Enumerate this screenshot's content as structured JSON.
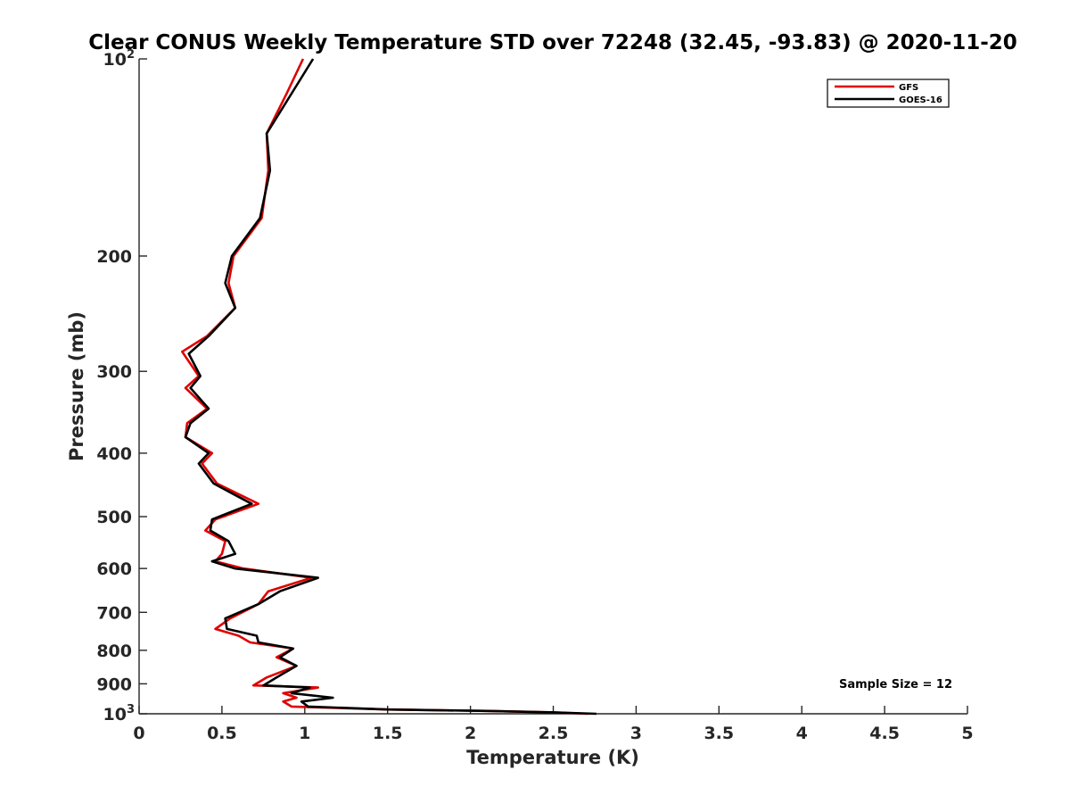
{
  "chart_data": {
    "type": "line",
    "title": "Clear CONUS Weekly Temperature STD over 72248 (32.45, -93.83) @ 2020-11-20",
    "xlabel": "Temperature (K)",
    "ylabel": "Pressure (mb)",
    "xlim": [
      0,
      5
    ],
    "ylim": [
      100,
      1000
    ],
    "y_scale": "log",
    "y_reversed": true,
    "grid": false,
    "legend_position": "top-right",
    "x_ticks": [
      "0",
      "0.5",
      "1",
      "1.5",
      "2",
      "2.5",
      "3",
      "3.5",
      "4",
      "4.5",
      "5"
    ],
    "y_ticks": [
      {
        "value": 100,
        "base": "10",
        "exp": "2"
      },
      {
        "value": 200,
        "label": "200"
      },
      {
        "value": 300,
        "label": "300"
      },
      {
        "value": 400,
        "label": "400"
      },
      {
        "value": 500,
        "label": "500"
      },
      {
        "value": 600,
        "label": "600"
      },
      {
        "value": 700,
        "label": "700"
      },
      {
        "value": 800,
        "label": "800"
      },
      {
        "value": 900,
        "label": "900"
      },
      {
        "value": 1000,
        "base": "10",
        "exp": "3"
      }
    ],
    "series": [
      {
        "name": "GFS",
        "color": "#e00000",
        "points": [
          [
            0.99,
            100
          ],
          [
            0.89,
            113
          ],
          [
            0.77,
            130
          ],
          [
            0.78,
            148
          ],
          [
            0.74,
            175
          ],
          [
            0.57,
            200
          ],
          [
            0.54,
            220
          ],
          [
            0.58,
            240
          ],
          [
            0.41,
            265
          ],
          [
            0.26,
            280
          ],
          [
            0.36,
            305
          ],
          [
            0.28,
            318
          ],
          [
            0.41,
            342
          ],
          [
            0.29,
            360
          ],
          [
            0.28,
            378
          ],
          [
            0.44,
            400
          ],
          [
            0.38,
            415
          ],
          [
            0.47,
            445
          ],
          [
            0.72,
            478
          ],
          [
            0.46,
            505
          ],
          [
            0.4,
            525
          ],
          [
            0.52,
            545
          ],
          [
            0.5,
            570
          ],
          [
            0.46,
            585
          ],
          [
            0.63,
            600
          ],
          [
            1.04,
            620
          ],
          [
            0.78,
            650
          ],
          [
            0.72,
            680
          ],
          [
            0.55,
            715
          ],
          [
            0.46,
            742
          ],
          [
            0.6,
            760
          ],
          [
            0.67,
            778
          ],
          [
            0.93,
            795
          ],
          [
            0.83,
            820
          ],
          [
            0.95,
            845
          ],
          [
            0.77,
            880
          ],
          [
            0.69,
            905
          ],
          [
            1.08,
            912
          ],
          [
            0.87,
            930
          ],
          [
            0.95,
            945
          ],
          [
            0.87,
            958
          ],
          [
            0.92,
            975
          ],
          [
            1.5,
            985
          ],
          [
            2.1,
            990
          ],
          [
            2.5,
            995
          ],
          [
            2.71,
            1000
          ]
        ]
      },
      {
        "name": "GOES-16",
        "color": "#000000",
        "points": [
          [
            1.05,
            100
          ],
          [
            0.92,
            113
          ],
          [
            0.77,
            130
          ],
          [
            0.79,
            148
          ],
          [
            0.73,
            175
          ],
          [
            0.56,
            200
          ],
          [
            0.52,
            220
          ],
          [
            0.58,
            240
          ],
          [
            0.42,
            265
          ],
          [
            0.3,
            282
          ],
          [
            0.37,
            305
          ],
          [
            0.31,
            318
          ],
          [
            0.42,
            342
          ],
          [
            0.31,
            360
          ],
          [
            0.28,
            378
          ],
          [
            0.42,
            400
          ],
          [
            0.36,
            415
          ],
          [
            0.45,
            445
          ],
          [
            0.68,
            478
          ],
          [
            0.44,
            505
          ],
          [
            0.43,
            525
          ],
          [
            0.54,
            545
          ],
          [
            0.58,
            570
          ],
          [
            0.44,
            585
          ],
          [
            0.58,
            600
          ],
          [
            1.08,
            620
          ],
          [
            0.85,
            650
          ],
          [
            0.72,
            680
          ],
          [
            0.52,
            715
          ],
          [
            0.53,
            742
          ],
          [
            0.71,
            760
          ],
          [
            0.72,
            778
          ],
          [
            0.93,
            795
          ],
          [
            0.85,
            820
          ],
          [
            0.95,
            845
          ],
          [
            0.83,
            880
          ],
          [
            0.75,
            905
          ],
          [
            1.03,
            912
          ],
          [
            0.92,
            930
          ],
          [
            1.17,
            945
          ],
          [
            0.98,
            958
          ],
          [
            1.02,
            975
          ],
          [
            1.5,
            985
          ],
          [
            2.1,
            990
          ],
          [
            2.5,
            995
          ],
          [
            2.76,
            1000
          ]
        ]
      }
    ],
    "annotations": [
      "Sample Size = 12"
    ]
  }
}
